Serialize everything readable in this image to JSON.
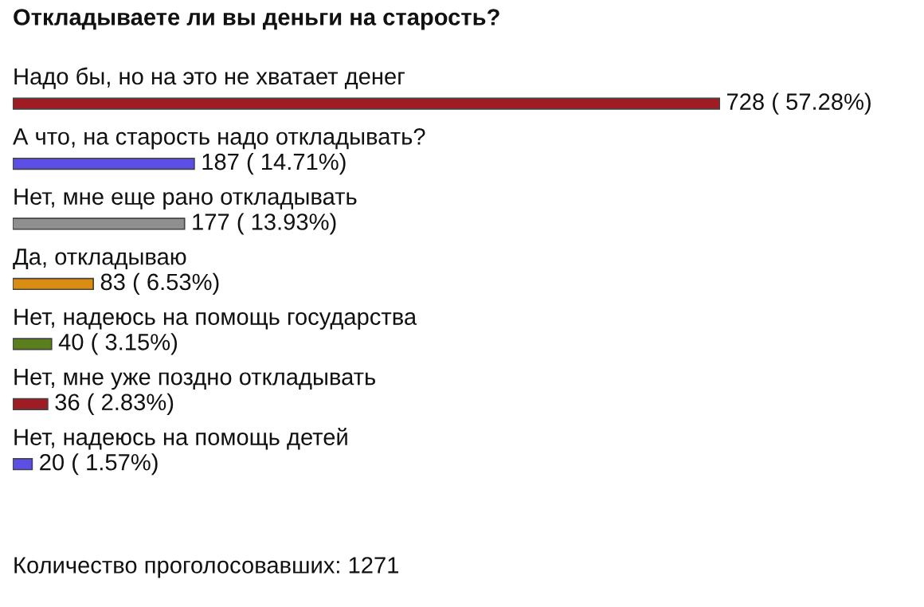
{
  "chart_data": {
    "type": "bar",
    "orientation": "horizontal",
    "title": "Откладываете ли вы деньги на старость?",
    "categories": [
      "Надо бы, но на это не хватает денег",
      "А что, на старость надо откладывать?",
      "Нет, мне еще рано откладывать",
      "Да, откладываю",
      "Нет, надеюсь на помощь государства",
      "Нет, мне уже поздно откладывать",
      "Нет, надеюсь на помощь детей"
    ],
    "values": [
      728,
      187,
      177,
      83,
      40,
      36,
      20
    ],
    "colors": [
      "#a01c24",
      "#5b4fe6",
      "#8f8f8f",
      "#d98e12",
      "#5b7f1c",
      "#a01c24",
      "#5b4fe6"
    ],
    "value_labels": [
      "728 ( 57.28%)",
      "187 ( 14.71%)",
      "177 ( 13.93%)",
      "83 ( 6.53%)",
      "40 ( 3.15%)",
      "36 ( 2.83%)",
      "20 ( 1.57%)"
    ],
    "annotations": [
      "Количество проголосовавших: 1271"
    ],
    "legend": false
  }
}
